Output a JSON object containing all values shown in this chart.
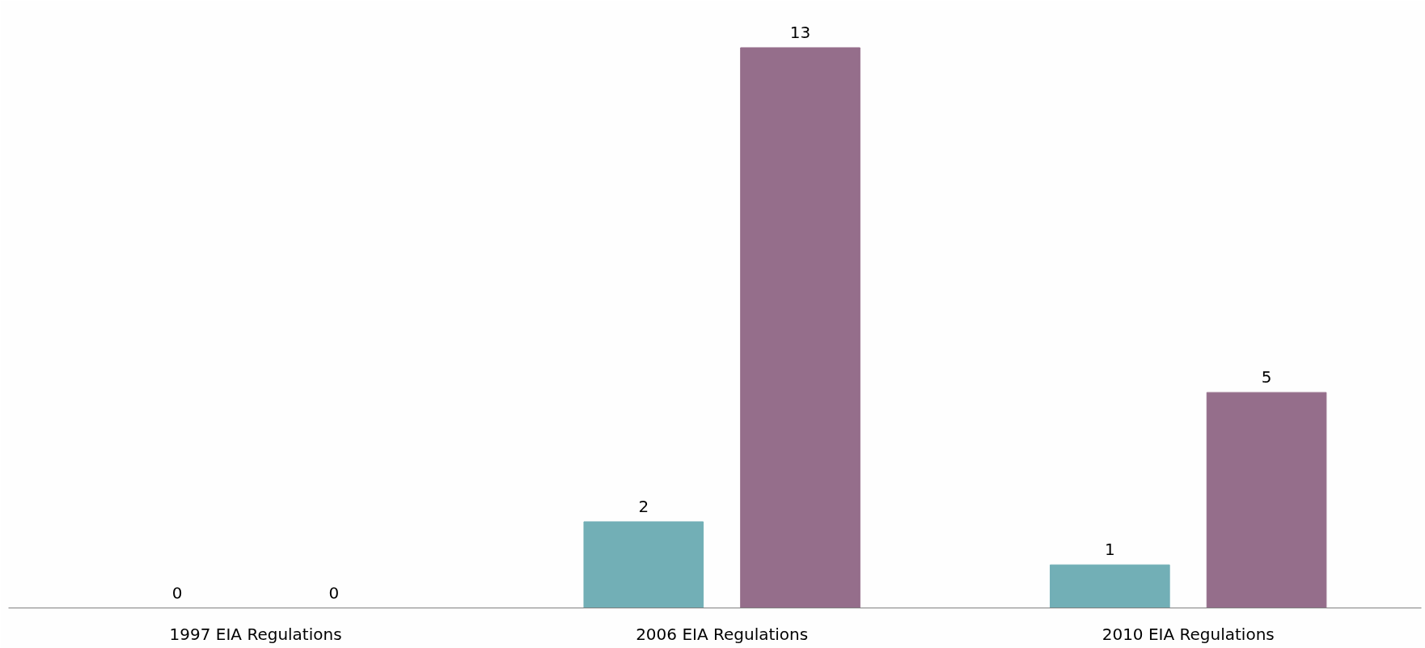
{
  "chart_data": {
    "type": "bar",
    "categories": [
      "1997 EIA Regulations",
      "2006 EIA Regulations",
      "2010 EIA Regulations"
    ],
    "series": [
      {
        "color": "#72afb6",
        "values": [
          0,
          2,
          1
        ]
      },
      {
        "color": "#956e8b",
        "values": [
          0,
          13,
          5
        ]
      }
    ],
    "data_labels": true,
    "tick_labels": "x",
    "grid": false
  }
}
